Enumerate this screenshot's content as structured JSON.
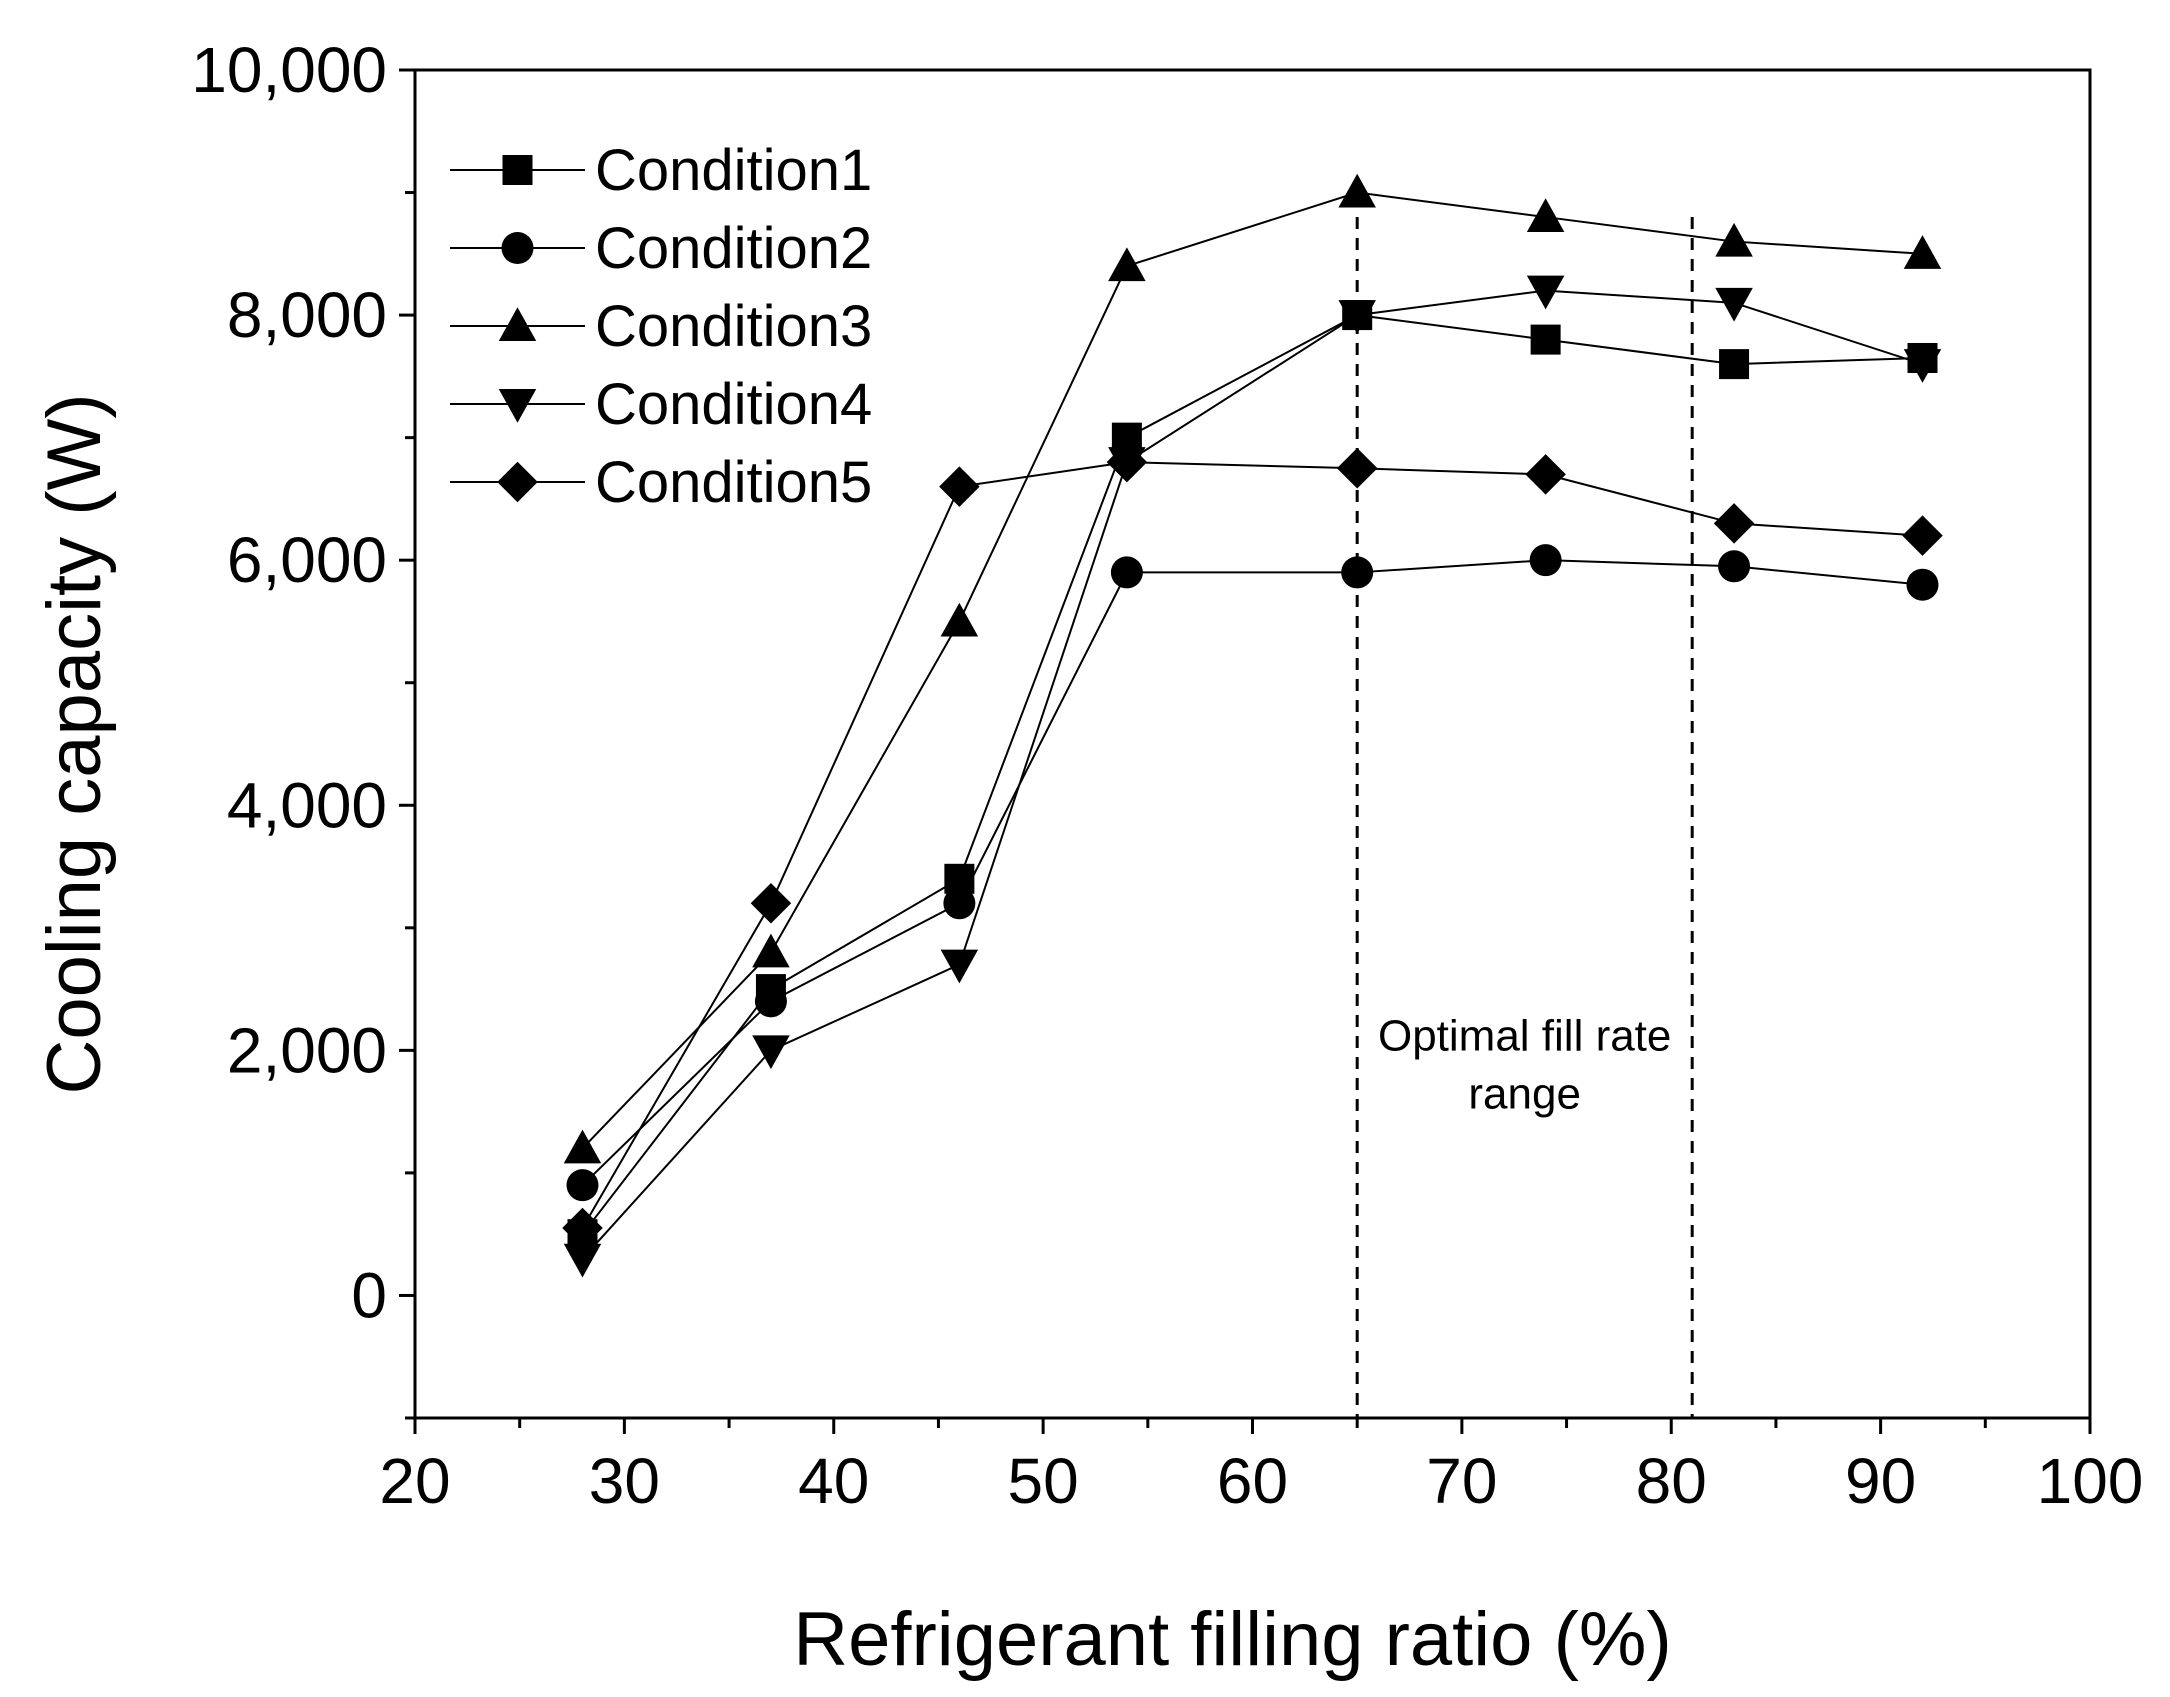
{
  "chart_data": {
    "type": "line",
    "title": "",
    "xlabel": "Refrigerant filling ratio (%)",
    "ylabel": "Cooling capacity (W)",
    "xlim": [
      20,
      100
    ],
    "ylim": [
      -1000,
      10000
    ],
    "xticks": [
      20,
      30,
      40,
      50,
      60,
      70,
      80,
      90,
      100
    ],
    "xtick_labels": [
      "20",
      "30",
      "40",
      "50",
      "60",
      "70",
      "80",
      "90",
      "100"
    ],
    "yticks": [
      0,
      2000,
      4000,
      6000,
      8000,
      10000
    ],
    "ytick_labels": [
      "0",
      "2,000",
      "4,000",
      "6,000",
      "8,000",
      "10,000"
    ],
    "grid": false,
    "legend_position": "top-left",
    "x": [
      28,
      37,
      46,
      54,
      65,
      74,
      83,
      92
    ],
    "series": [
      {
        "name": "Condition1",
        "marker": "square",
        "values": [
          500,
          2500,
          3400,
          7000,
          8000,
          7800,
          7600,
          7650
        ]
      },
      {
        "name": "Condition2",
        "marker": "circle",
        "values": [
          900,
          2400,
          3200,
          5900,
          5900,
          6000,
          5950,
          5800
        ]
      },
      {
        "name": "Condition3",
        "marker": "triangle-up",
        "values": [
          1200,
          2800,
          5500,
          8400,
          9000,
          8800,
          8600,
          8500
        ]
      },
      {
        "name": "Condition4",
        "marker": "triangle-down",
        "values": [
          300,
          2000,
          2700,
          6800,
          8000,
          8200,
          8100,
          7600
        ]
      },
      {
        "name": "Condition5",
        "marker": "diamond",
        "values": [
          550,
          3200,
          6600,
          6800,
          6750,
          6700,
          6300,
          6200
        ]
      }
    ],
    "reference_lines": [
      {
        "axis": "x",
        "value": 65,
        "style": "dashed"
      },
      {
        "axis": "x",
        "value": 81,
        "style": "dashed"
      }
    ],
    "annotations": [
      {
        "lines": [
          "Optimal fill rate",
          "range"
        ],
        "x": 73,
        "y": 2000
      }
    ]
  }
}
